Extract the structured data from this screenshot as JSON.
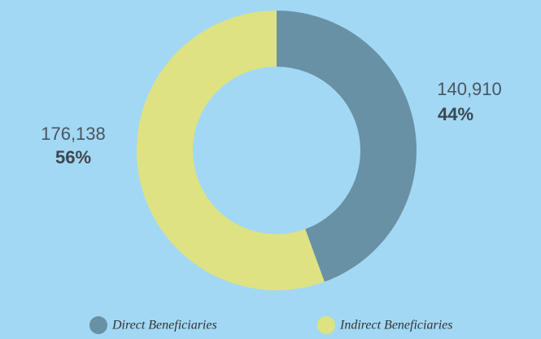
{
  "chart_data": {
    "type": "donut",
    "categories": [
      "Direct Beneficiaries",
      "Indirect Beneficiaries"
    ],
    "values": [
      140910,
      176138
    ],
    "value_labels": [
      "140,910",
      "176,138"
    ],
    "percents": [
      44,
      56
    ],
    "percent_labels": [
      "44%",
      "56%"
    ],
    "colors": [
      "#6891a6",
      "#dee282"
    ]
  }
}
